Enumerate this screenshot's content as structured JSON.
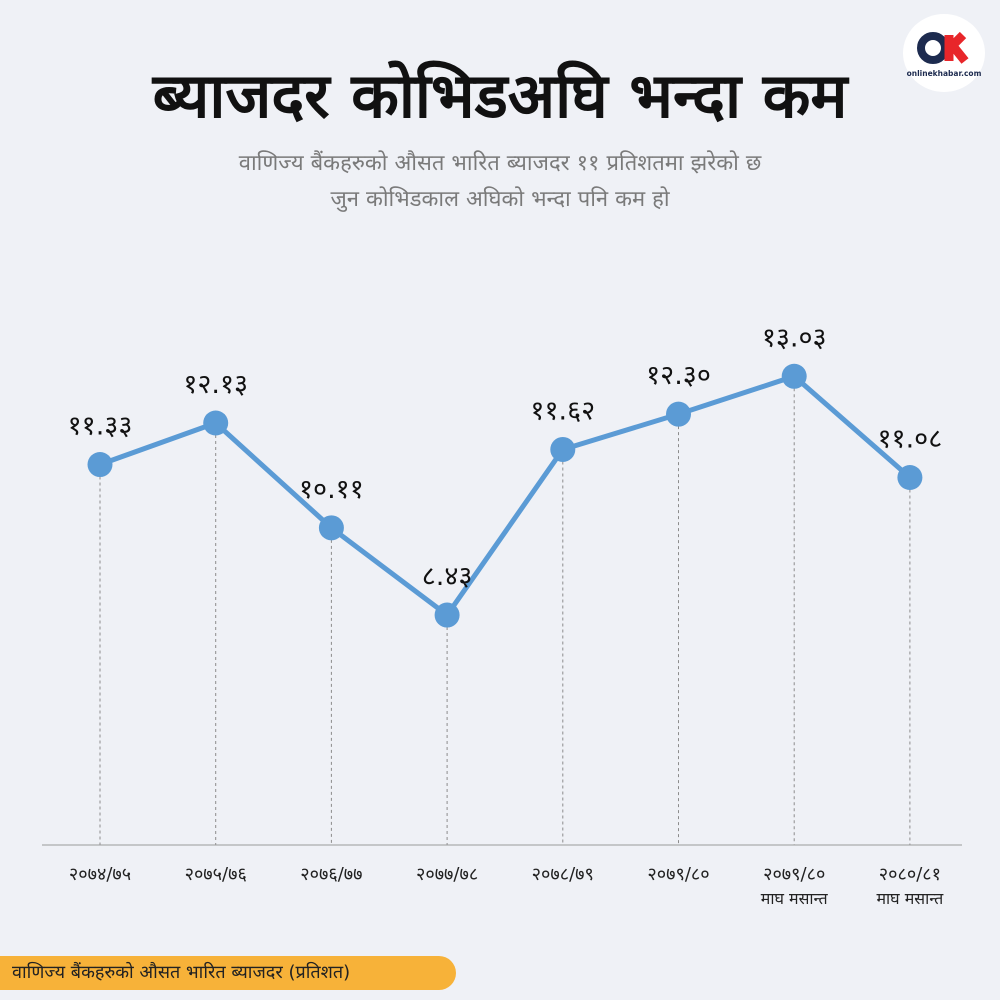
{
  "header": {
    "title": "ब्याजदर कोभिडअघि भन्दा कम",
    "subtitle_line1": "वाणिज्य बैंकहरुको औसत भारित ब्याजदर ११ प्रतिशतमा झरेको छ",
    "subtitle_line2": "जुन कोभिडकाल अघिको भन्दा पनि कम हो"
  },
  "logo": {
    "icon": "onlinekhabar-logo-icon",
    "text": "onlinekhabar.com",
    "accent": "#e8262a"
  },
  "footer": {
    "label": "वाणिज्य बैंकहरुको औसत भारित ब्याजदर  (प्रतिशत)"
  },
  "colors": {
    "line": "#5b9bd5",
    "footer_bg": "#f7b239",
    "background": "#eff1f6"
  },
  "chart_data": {
    "type": "line",
    "categories": [
      "२०७४/७५",
      "२०७५/७६",
      "२०७६/७७",
      "२०७७/७८",
      "२०७८/७९",
      "२०७९/८०",
      "२०७९/८०",
      "२०८०/८१"
    ],
    "category_sublabels": [
      "",
      "",
      "",
      "",
      "",
      "",
      "माघ मसान्त",
      "माघ मसान्त"
    ],
    "values": [
      11.33,
      12.13,
      10.11,
      8.43,
      11.62,
      12.3,
      13.03,
      11.08
    ],
    "value_labels": [
      "११.३३",
      "१२.१३",
      "१०.११",
      "८.४३",
      "११.६२",
      "१२.३०",
      "१३.०३",
      "११.०८"
    ],
    "series": [
      {
        "values": [
          11.33,
          12.13,
          10.11,
          8.43,
          11.62,
          12.3,
          13.03,
          11.08
        ]
      }
    ],
    "ylim": [
      4,
      15.27
    ],
    "grid": false,
    "drop_lines": true
  }
}
